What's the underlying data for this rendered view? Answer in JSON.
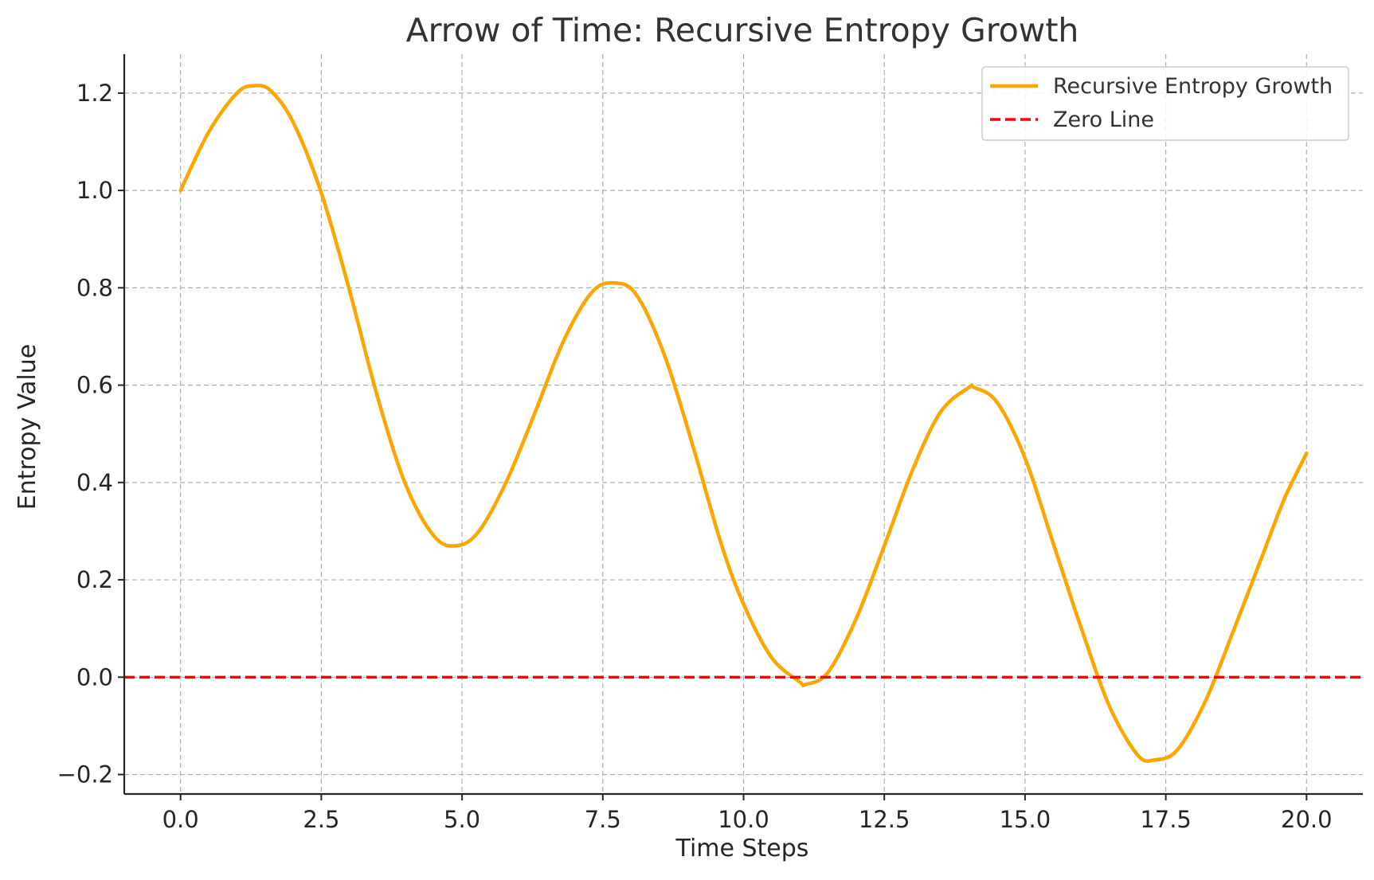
{
  "chart_data": {
    "type": "line",
    "title": "Arrow of Time: Recursive Entropy Growth",
    "xlabel": "Time Steps",
    "ylabel": "Entropy Value",
    "xlim": [
      -1,
      21
    ],
    "ylim": [
      -0.24,
      1.28
    ],
    "xticks": [
      0.0,
      2.5,
      5.0,
      7.5,
      10.0,
      12.5,
      15.0,
      17.5,
      20.0
    ],
    "xtick_labels": [
      "0.0",
      "2.5",
      "5.0",
      "7.5",
      "10.0",
      "12.5",
      "15.0",
      "17.5",
      "20.0"
    ],
    "yticks": [
      -0.2,
      0.0,
      0.2,
      0.4,
      0.6,
      0.8,
      1.0,
      1.2
    ],
    "ytick_labels": [
      "−0.2",
      "0.0",
      "0.2",
      "0.4",
      "0.6",
      "0.8",
      "1.0",
      "1.2"
    ],
    "grid": true,
    "legend_position": "top-right",
    "series": [
      {
        "name": "Recursive Entropy Growth",
        "color": "#FFA500",
        "style": "solid",
        "x": [
          0,
          0.5,
          1.0,
          1.3,
          1.6,
          2.0,
          2.5,
          3.0,
          3.5,
          4.0,
          4.5,
          4.9,
          5.3,
          5.8,
          6.3,
          6.8,
          7.3,
          7.7,
          8.1,
          8.6,
          9.1,
          9.6,
          10.0,
          10.5,
          11.0,
          11.1,
          11.5,
          12.0,
          12.5,
          13.0,
          13.5,
          14.0,
          14.1,
          14.5,
          15.0,
          15.5,
          16.0,
          16.5,
          17.0,
          17.3,
          17.7,
          18.2,
          18.7,
          19.2,
          19.6,
          20.0
        ],
        "y": [
          1.0,
          1.12,
          1.2,
          1.215,
          1.205,
          1.14,
          0.995,
          0.795,
          0.575,
          0.395,
          0.29,
          0.27,
          0.3,
          0.405,
          0.545,
          0.69,
          0.79,
          0.81,
          0.785,
          0.66,
          0.475,
          0.275,
          0.15,
          0.04,
          -0.01,
          -0.015,
          0.01,
          0.12,
          0.27,
          0.425,
          0.545,
          0.595,
          0.595,
          0.565,
          0.45,
          0.275,
          0.1,
          -0.06,
          -0.16,
          -0.17,
          -0.15,
          -0.05,
          0.095,
          0.245,
          0.365,
          0.46
        ]
      },
      {
        "name": "Zero Line",
        "color": "#FF0000",
        "style": "dashed",
        "y_constant": 0.0
      }
    ]
  }
}
